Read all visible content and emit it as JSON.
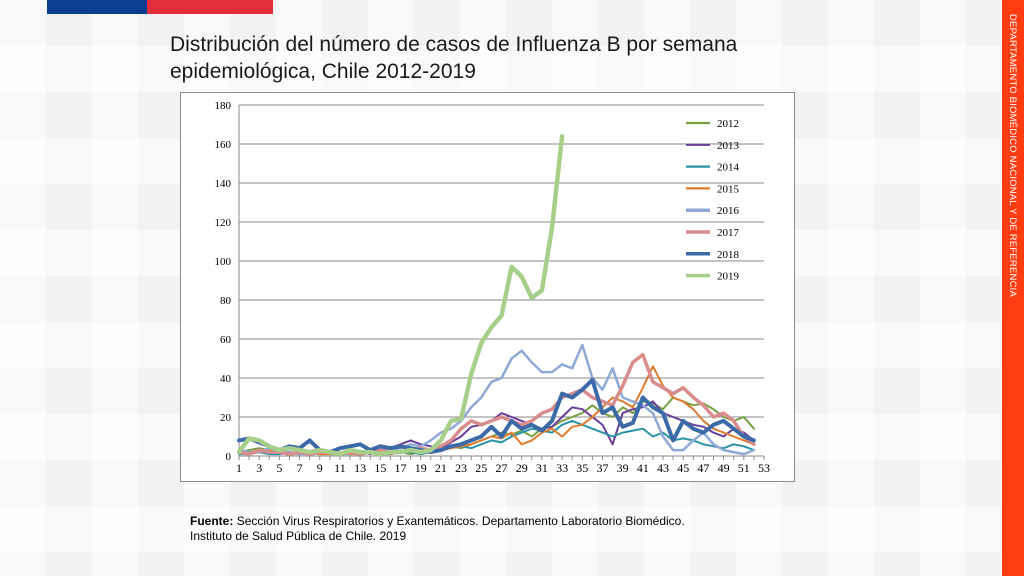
{
  "title": {
    "line1": "Distribución del número de casos de Influenza B  por semana",
    "line2": "epidemiológica, Chile 2012-2019"
  },
  "side_text": "DEPARTAMENTO BIOMÉDICO NACIONAL Y DE REFERENCIA",
  "footnote": {
    "label": "Fuente:",
    "line1": "Sección Virus Respiratorios y Exantemáticos. Departamento Laboratorio Biomédico.",
    "line2": "Instituto de Salud Pública de Chile. 2019"
  },
  "colors": {
    "top_blue": "#0b3d91",
    "top_red": "#e32d3a",
    "side_orange": "#ff3b12"
  },
  "chart_data": {
    "type": "line",
    "title": "",
    "xlabel": "",
    "ylabel": "",
    "xlim": [
      1,
      53
    ],
    "ylim": [
      0,
      180
    ],
    "yticks": [
      0,
      20,
      40,
      60,
      80,
      100,
      120,
      140,
      160,
      180
    ],
    "xticks": [
      1,
      3,
      5,
      7,
      9,
      11,
      13,
      15,
      17,
      19,
      21,
      23,
      25,
      27,
      29,
      31,
      33,
      35,
      37,
      39,
      41,
      43,
      45,
      47,
      49,
      51,
      53
    ],
    "grid": "horizontal",
    "legend_position": "top-right",
    "series": [
      {
        "name": "2012",
        "color": "#77a043",
        "values": [
          2,
          3,
          4,
          3,
          2,
          1,
          1,
          2,
          1,
          1,
          1,
          2,
          1,
          2,
          1,
          2,
          2,
          1,
          2,
          2,
          4,
          5,
          4,
          6,
          8,
          10,
          12,
          11,
          13,
          10,
          14,
          15,
          18,
          20,
          22,
          26,
          22,
          20,
          25,
          22,
          28,
          27,
          24,
          30,
          28,
          26,
          27,
          24,
          20,
          18,
          20,
          14
        ]
      },
      {
        "name": "2013",
        "color": "#6a3d9a",
        "values": [
          1,
          2,
          2,
          3,
          1,
          2,
          1,
          2,
          3,
          2,
          1,
          2,
          2,
          1,
          3,
          4,
          6,
          8,
          6,
          5,
          4,
          7,
          10,
          15,
          16,
          18,
          22,
          20,
          18,
          16,
          14,
          15,
          20,
          25,
          24,
          20,
          16,
          6,
          22,
          24,
          25,
          28,
          22,
          20,
          18,
          16,
          15,
          12,
          10,
          14,
          12,
          8
        ]
      },
      {
        "name": "2014",
        "color": "#2b93a8",
        "values": [
          1,
          1,
          2,
          1,
          1,
          2,
          1,
          1,
          2,
          1,
          1,
          1,
          1,
          2,
          1,
          1,
          2,
          2,
          1,
          2,
          3,
          4,
          5,
          4,
          6,
          8,
          7,
          10,
          12,
          14,
          13,
          12,
          16,
          18,
          16,
          14,
          12,
          10,
          12,
          13,
          14,
          10,
          12,
          8,
          9,
          8,
          6,
          5,
          4,
          6,
          5,
          3
        ]
      },
      {
        "name": "2015",
        "color": "#e07b2d",
        "values": [
          2,
          1,
          2,
          3,
          2,
          1,
          2,
          2,
          1,
          1,
          2,
          1,
          1,
          2,
          2,
          1,
          2,
          3,
          2,
          2,
          3,
          4,
          5,
          6,
          8,
          10,
          9,
          12,
          6,
          8,
          12,
          14,
          10,
          15,
          16,
          20,
          25,
          30,
          28,
          25,
          35,
          46,
          36,
          30,
          28,
          24,
          18,
          14,
          12,
          10,
          8,
          6
        ]
      },
      {
        "name": "2016",
        "color": "#8fa9d6",
        "values": [
          3,
          2,
          2,
          4,
          3,
          2,
          1,
          2,
          3,
          2,
          1,
          2,
          2,
          3,
          2,
          3,
          4,
          6,
          5,
          8,
          12,
          14,
          18,
          25,
          30,
          38,
          40,
          50,
          54,
          48,
          43,
          43,
          47,
          45,
          57,
          40,
          34,
          45,
          30,
          28,
          26,
          22,
          10,
          3,
          3,
          8,
          12,
          6,
          3,
          2,
          1,
          3
        ]
      },
      {
        "name": "2017",
        "color": "#d98c8c",
        "values": [
          2,
          1,
          3,
          2,
          2,
          1,
          2,
          1,
          2,
          2,
          1,
          2,
          1,
          2,
          3,
          2,
          2,
          3,
          4,
          3,
          5,
          8,
          14,
          18,
          16,
          18,
          20,
          18,
          16,
          18,
          22,
          24,
          30,
          32,
          34,
          30,
          28,
          26,
          36,
          48,
          52,
          38,
          35,
          32,
          35,
          30,
          26,
          20,
          22,
          18,
          10,
          6
        ]
      },
      {
        "name": "2018",
        "color": "#3c6aa8",
        "values": [
          8,
          9,
          7,
          5,
          3,
          5,
          4,
          8,
          3,
          2,
          4,
          5,
          6,
          3,
          5,
          4,
          5,
          4,
          3,
          2,
          3,
          5,
          6,
          8,
          10,
          15,
          10,
          18,
          14,
          16,
          13,
          18,
          32,
          30,
          34,
          39,
          22,
          25,
          15,
          17,
          30,
          25,
          22,
          8,
          18,
          14,
          12,
          16,
          18,
          14,
          10,
          8
        ]
      },
      {
        "name": "2019",
        "color": "#a7cf8a",
        "values": [
          2,
          9,
          8,
          5,
          3,
          4,
          3,
          2,
          3,
          2,
          1,
          3,
          2,
          2,
          1,
          2,
          2,
          3,
          2,
          3,
          8,
          18,
          19,
          42,
          58,
          66,
          72,
          97,
          92,
          81,
          85,
          117,
          164
        ]
      }
    ]
  }
}
